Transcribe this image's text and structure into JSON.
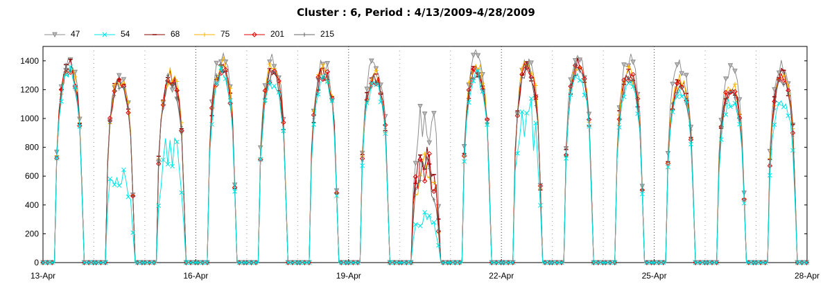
{
  "chart_data": {
    "type": "line",
    "title": "Cluster : 6, Period : 4/13/2009-4/28/2009",
    "xlabel": "",
    "ylabel": "",
    "ylim": [
      0,
      1500
    ],
    "yticks": [
      0,
      200,
      400,
      600,
      800,
      1000,
      1200,
      1400
    ],
    "x_range_days": [
      "13-Apr",
      "28-Apr"
    ],
    "xtick_labels": [
      "13-Apr",
      "16-Apr",
      "19-Apr",
      "22-Apr",
      "25-Apr",
      "28-Apr"
    ],
    "legend_position": "top-left",
    "grid": "dotted vertical lines at day boundaries",
    "series": [
      {
        "name": "47",
        "color": "#8c8c8c",
        "marker": "triangle-down",
        "daily_peak": [
          1400,
          1300,
          1250,
          1420,
          1400,
          1380,
          1390,
          1050,
          1420,
          1380,
          1420,
          1410,
          1370,
          1320,
          1360
        ]
      },
      {
        "name": "54",
        "color": "#00e5e5",
        "marker": "x",
        "daily_peak": [
          1330,
          650,
          800,
          1300,
          1250,
          1280,
          1250,
          300,
          1300,
          1000,
          1280,
          1260,
          1200,
          1130,
          1130
        ]
      },
      {
        "name": "68",
        "color": "#8b0000",
        "marker": "dash",
        "daily_peak": [
          1360,
          1270,
          1300,
          1350,
          1330,
          1320,
          1300,
          700,
          1350,
          1350,
          1370,
          1330,
          1270,
          1220,
          1300
        ]
      },
      {
        "name": "75",
        "color": "#ffb300",
        "marker": "plus",
        "daily_peak": [
          1370,
          1280,
          1310,
          1380,
          1350,
          1330,
          1300,
          680,
          1380,
          1400,
          1380,
          1320,
          1260,
          1230,
          1280
        ]
      },
      {
        "name": "201",
        "color": "#dd0000",
        "marker": "diamond",
        "daily_peak": [
          1340,
          1260,
          1290,
          1360,
          1320,
          1320,
          1290,
          650,
          1340,
          1360,
          1380,
          1310,
          1250,
          1210,
          1260
        ]
      },
      {
        "name": "215",
        "color": "#666666",
        "marker": "vertical-bar",
        "daily_peak": [
          1350,
          1250,
          1280,
          1340,
          1300,
          1310,
          1280,
          620,
          1330,
          1340,
          1360,
          1300,
          1240,
          1200,
          1250
        ]
      }
    ]
  }
}
